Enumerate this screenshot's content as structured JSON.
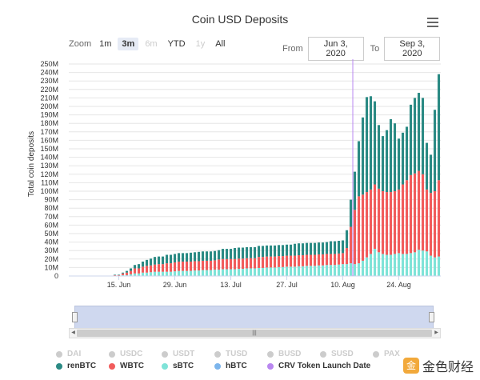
{
  "header": {
    "title": "Coin USD Deposits",
    "zoom_label": "Zoom",
    "zoom_buttons": [
      {
        "label": "1m",
        "state": "normal"
      },
      {
        "label": "3m",
        "state": "active"
      },
      {
        "label": "6m",
        "state": "disabled"
      },
      {
        "label": "YTD",
        "state": "normal"
      },
      {
        "label": "1y",
        "state": "disabled"
      },
      {
        "label": "All",
        "state": "normal"
      }
    ],
    "from_label": "From",
    "from_value": "Jun 3, 2020",
    "to_label": "To",
    "to_value": "Sep 3, 2020"
  },
  "chart_data": {
    "type": "bar",
    "stacked": true,
    "title": "Coin USD Deposits",
    "ylabel": "Total coin deposits",
    "xlabel": "",
    "ylim": [
      0,
      250
    ],
    "y_unit": "M",
    "yticks": [
      "0",
      "10M",
      "20M",
      "30M",
      "40M",
      "50M",
      "60M",
      "70M",
      "80M",
      "90M",
      "100M",
      "110M",
      "120M",
      "130M",
      "140M",
      "150M",
      "160M",
      "170M",
      "180M",
      "190M",
      "200M",
      "210M",
      "220M",
      "230M",
      "240M",
      "250M"
    ],
    "xticks": [
      "15. Jun",
      "29. Jun",
      "13. Jul",
      "27. Jul",
      "10. Aug",
      "24. Aug"
    ],
    "categories": [
      "Jun 3",
      "Jun 4",
      "Jun 5",
      "Jun 6",
      "Jun 7",
      "Jun 8",
      "Jun 9",
      "Jun 10",
      "Jun 11",
      "Jun 12",
      "Jun 13",
      "Jun 14",
      "Jun 15",
      "Jun 16",
      "Jun 17",
      "Jun 18",
      "Jun 19",
      "Jun 20",
      "Jun 21",
      "Jun 22",
      "Jun 23",
      "Jun 24",
      "Jun 25",
      "Jun 26",
      "Jun 27",
      "Jun 28",
      "Jun 29",
      "Jun 30",
      "Jul 1",
      "Jul 2",
      "Jul 3",
      "Jul 4",
      "Jul 5",
      "Jul 6",
      "Jul 7",
      "Jul 8",
      "Jul 9",
      "Jul 10",
      "Jul 11",
      "Jul 12",
      "Jul 13",
      "Jul 14",
      "Jul 15",
      "Jul 16",
      "Jul 17",
      "Jul 18",
      "Jul 19",
      "Jul 20",
      "Jul 21",
      "Jul 22",
      "Jul 23",
      "Jul 24",
      "Jul 25",
      "Jul 26",
      "Jul 27",
      "Jul 28",
      "Jul 29",
      "Jul 30",
      "Jul 31",
      "Aug 1",
      "Aug 2",
      "Aug 3",
      "Aug 4",
      "Aug 5",
      "Aug 6",
      "Aug 7",
      "Aug 8",
      "Aug 9",
      "Aug 10",
      "Aug 11",
      "Aug 12",
      "Aug 13",
      "Aug 14",
      "Aug 15",
      "Aug 16",
      "Aug 17",
      "Aug 18",
      "Aug 19",
      "Aug 20",
      "Aug 21",
      "Aug 22",
      "Aug 23",
      "Aug 24",
      "Aug 25",
      "Aug 26",
      "Aug 27",
      "Aug 28",
      "Aug 29",
      "Aug 30",
      "Aug 31",
      "Sep 1",
      "Sep 2",
      "Sep 3"
    ],
    "series": [
      {
        "name": "sBTC",
        "color": "#7fe3d8",
        "values": [
          0,
          0,
          0,
          0,
          0,
          0,
          0,
          0,
          0,
          0,
          0,
          0.5,
          0.5,
          1,
          1,
          2,
          3,
          3,
          4,
          4,
          4.5,
          5,
          5,
          5,
          5,
          5,
          5.5,
          6,
          6,
          6,
          6,
          6.5,
          6.5,
          7,
          7,
          7,
          7.5,
          7.5,
          8,
          8,
          8,
          8,
          8.5,
          8.5,
          9,
          9,
          9,
          9.5,
          9.5,
          10,
          10,
          10,
          10.5,
          10.5,
          11,
          11,
          11,
          11.5,
          11.5,
          12,
          12,
          12,
          12.5,
          12.5,
          13,
          13,
          13,
          13.5,
          14,
          14,
          15,
          14,
          15,
          18,
          22,
          26,
          32,
          28,
          26,
          25,
          25,
          26,
          27,
          26,
          26,
          27,
          28,
          31,
          30,
          29,
          24,
          22,
          23
        ]
      },
      {
        "name": "WBTC",
        "color": "#f15c5c",
        "values": [
          0,
          0,
          0,
          0,
          0,
          0,
          0,
          0,
          0,
          0,
          0,
          0.5,
          0.5,
          2,
          3,
          4,
          6,
          6,
          7,
          8,
          8,
          8.5,
          9,
          9,
          10,
          10,
          10.5,
          11,
          11,
          11,
          11,
          11,
          11,
          11,
          11,
          11,
          11,
          12,
          12,
          12,
          12,
          12,
          12,
          12,
          12,
          12,
          12,
          13,
          13,
          13,
          13,
          13,
          13,
          13,
          13,
          13,
          13,
          13,
          13,
          13,
          13,
          13,
          13,
          13,
          13,
          13,
          13,
          13,
          13,
          19,
          43,
          64,
          79,
          78,
          77,
          76,
          76,
          75,
          74,
          74,
          74,
          74,
          75,
          82,
          87,
          92,
          93,
          93,
          90,
          73,
          74,
          78,
          90
        ]
      },
      {
        "name": "renBTC",
        "color": "#2b8a84",
        "values": [
          0,
          0,
          0,
          0,
          0,
          0,
          0,
          0,
          0,
          0,
          0,
          0.5,
          0.5,
          1,
          2,
          3,
          4,
          5,
          6,
          7,
          8,
          9,
          9,
          9,
          10,
          10,
          10,
          10,
          10,
          10,
          10.5,
          10.5,
          11,
          11,
          11,
          11,
          11,
          11,
          12,
          12,
          12,
          13,
          13,
          13,
          13,
          13,
          13,
          13,
          13,
          13,
          13,
          13,
          13,
          13,
          13,
          13,
          14,
          14,
          14,
          14,
          14,
          14,
          14,
          14,
          14,
          15,
          15,
          15,
          15,
          21,
          32,
          45,
          65,
          91,
          112,
          110,
          98,
          75,
          65,
          73,
          86,
          80,
          60,
          61,
          63,
          83,
          89,
          92,
          90,
          55,
          45,
          96,
          125
        ]
      },
      {
        "name": "hBTC",
        "color": "#7cb5ec",
        "values": [
          0,
          0,
          0,
          0,
          0,
          0,
          0,
          0,
          0,
          0,
          0,
          0,
          0,
          0,
          0,
          0,
          0,
          0,
          0,
          0,
          0,
          0,
          0,
          0,
          0,
          0,
          0,
          0,
          0,
          0,
          0,
          0,
          0,
          0,
          0,
          0,
          0,
          0,
          0,
          0,
          0,
          0,
          0,
          0,
          0,
          0,
          0,
          0,
          0,
          0,
          0,
          0,
          0,
          0,
          0,
          0,
          0,
          0,
          0,
          0,
          0,
          0,
          0,
          0,
          0,
          0,
          0,
          0,
          0,
          0,
          0,
          0,
          0,
          0,
          0,
          0,
          0,
          0,
          0,
          0,
          0,
          0,
          0,
          0,
          0,
          0,
          0,
          0,
          0,
          0,
          0,
          0,
          0
        ]
      }
    ],
    "annotation": {
      "label": "CRV Token Launch Date",
      "x": "Aug 13",
      "color": "#b987f0"
    }
  },
  "legend": {
    "items": [
      {
        "label": "DAI",
        "color": "#cccccc",
        "visible": false
      },
      {
        "label": "USDC",
        "color": "#cccccc",
        "visible": false
      },
      {
        "label": "USDT",
        "color": "#cccccc",
        "visible": false
      },
      {
        "label": "TUSD",
        "color": "#cccccc",
        "visible": false
      },
      {
        "label": "BUSD",
        "color": "#cccccc",
        "visible": false
      },
      {
        "label": "SUSD",
        "color": "#cccccc",
        "visible": false
      },
      {
        "label": "PAX",
        "color": "#cccccc",
        "visible": false
      },
      {
        "label": "renBTC",
        "color": "#2b8a84",
        "visible": true
      },
      {
        "label": "WBTC",
        "color": "#f15c5c",
        "visible": true
      },
      {
        "label": "sBTC",
        "color": "#7fe3d8",
        "visible": true
      },
      {
        "label": "hBTC",
        "color": "#7cb5ec",
        "visible": true
      },
      {
        "label": "CRV Token Launch Date",
        "color": "#b987f0",
        "visible": true
      }
    ]
  },
  "navigator": {
    "grip": "|||"
  },
  "watermark": {
    "text": "金色财经",
    "icon": "jinse-logo-icon",
    "glyph": "金"
  }
}
